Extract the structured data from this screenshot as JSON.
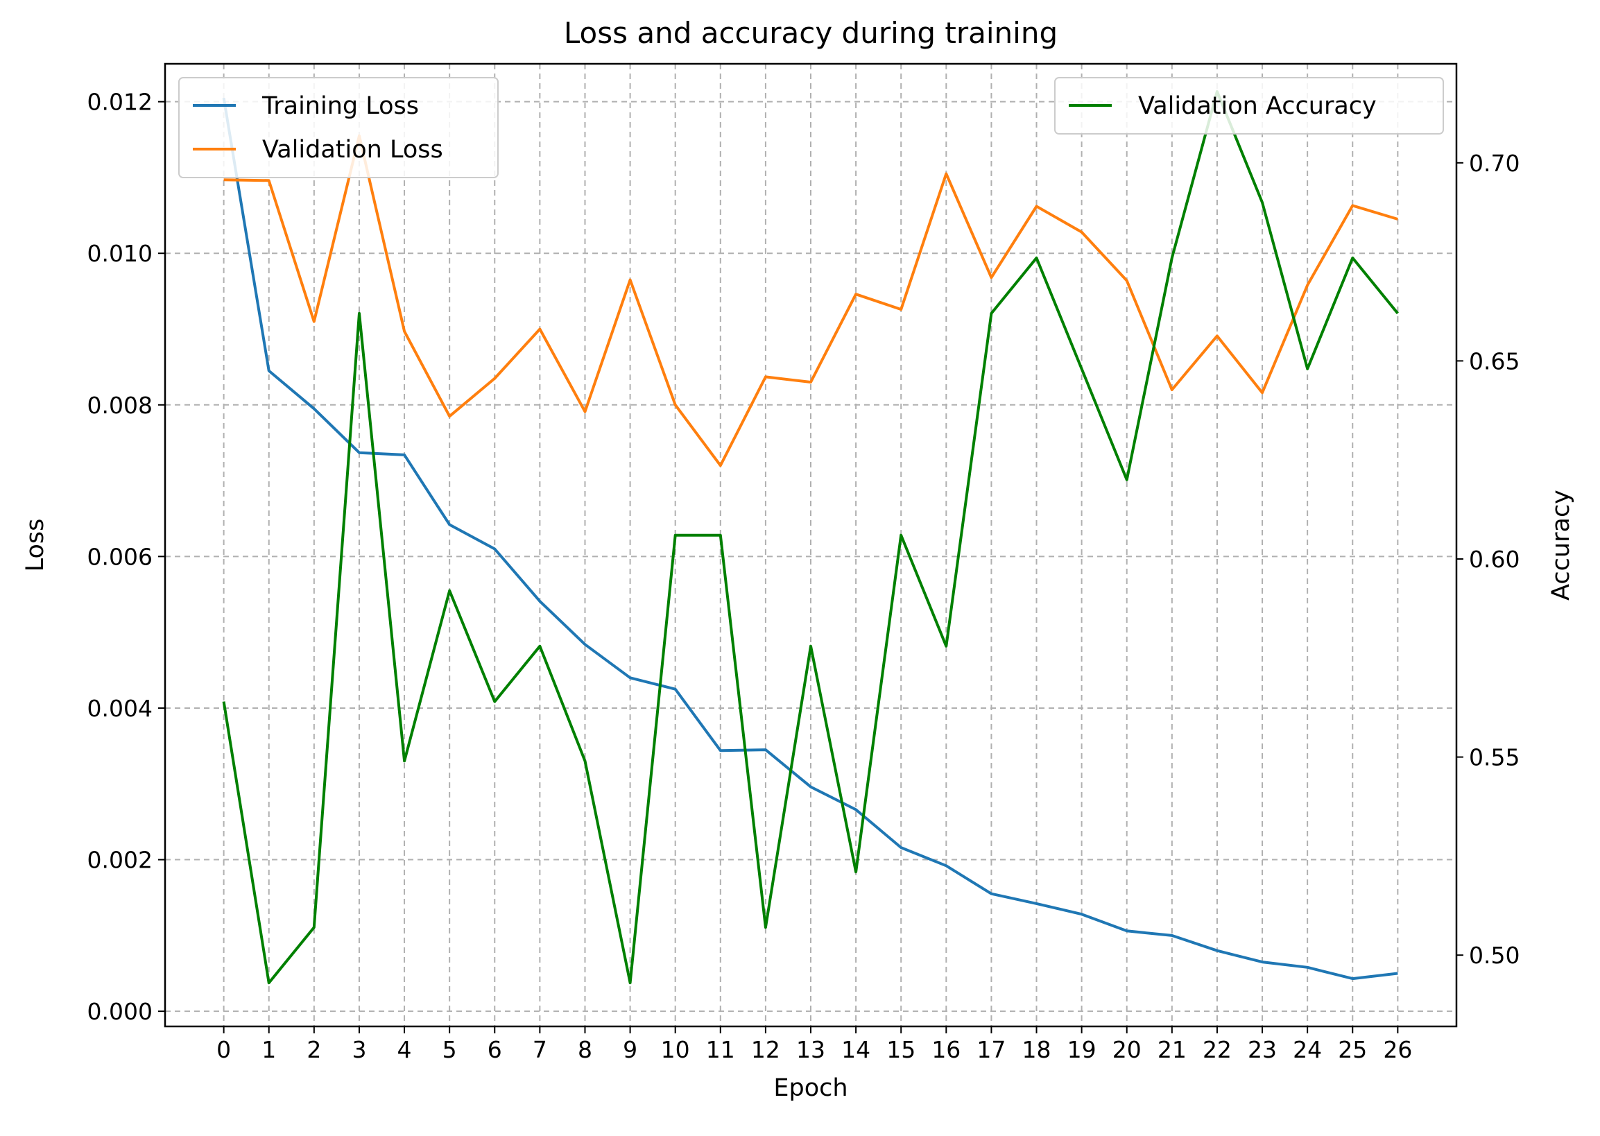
{
  "chart_data": {
    "type": "line",
    "title": "Loss and accuracy during training",
    "xlabel": "Epoch",
    "ylabel_left": "Loss",
    "ylabel_right": "Accuracy",
    "x": [
      0,
      1,
      2,
      3,
      4,
      5,
      6,
      7,
      8,
      9,
      10,
      11,
      12,
      13,
      14,
      15,
      16,
      17,
      18,
      19,
      20,
      21,
      22,
      23,
      24,
      25,
      26
    ],
    "xlim": [
      -1.3,
      27.3
    ],
    "ylim_left": [
      -0.0002,
      0.0125
    ],
    "yticks_left": [
      "0.000",
      "0.002",
      "0.004",
      "0.006",
      "0.008",
      "0.010",
      "0.012"
    ],
    "ylim_right": [
      0.482,
      0.725
    ],
    "yticks_right": [
      "0.50",
      "0.55",
      "0.60",
      "0.65",
      "0.70"
    ],
    "grid": true,
    "series": [
      {
        "name": "Training Loss",
        "axis": "left",
        "color": "#1f77b4",
        "values": [
          0.01205,
          0.00845,
          0.00795,
          0.00737,
          0.00734,
          0.00642,
          0.0061,
          0.00541,
          0.00484,
          0.0044,
          0.00425,
          0.00344,
          0.00345,
          0.00296,
          0.00266,
          0.00216,
          0.00192,
          0.00155,
          0.00142,
          0.00128,
          0.00106,
          0.001,
          0.0008,
          0.00065,
          0.00058,
          0.00043,
          0.0005
        ]
      },
      {
        "name": "Validation Loss",
        "axis": "left",
        "color": "#ff7f0e",
        "values": [
          0.01097,
          0.01096,
          0.0091,
          0.01155,
          0.00897,
          0.00785,
          0.00835,
          0.009,
          0.00791,
          0.00965,
          0.008,
          0.0072,
          0.00837,
          0.0083,
          0.00946,
          0.00926,
          0.01105,
          0.00968,
          0.01062,
          0.01028,
          0.00964,
          0.0082,
          0.00891,
          0.00816,
          0.00958,
          0.01063,
          0.01045
        ]
      },
      {
        "name": "Validation Accuracy",
        "axis": "right",
        "color": "#008000",
        "values": [
          0.564,
          0.493,
          0.507,
          0.662,
          0.549,
          0.592,
          0.564,
          0.578,
          0.549,
          0.493,
          0.606,
          0.606,
          0.507,
          0.578,
          0.521,
          0.606,
          0.578,
          0.662,
          0.676,
          0.648,
          0.62,
          0.676,
          0.718,
          0.69,
          0.648,
          0.676,
          0.662
        ]
      }
    ],
    "legend_left": {
      "placement": "upper-left",
      "entries": [
        "Training Loss",
        "Validation Loss"
      ]
    },
    "legend_right": {
      "placement": "upper-right",
      "entries": [
        "Validation Accuracy"
      ]
    }
  }
}
